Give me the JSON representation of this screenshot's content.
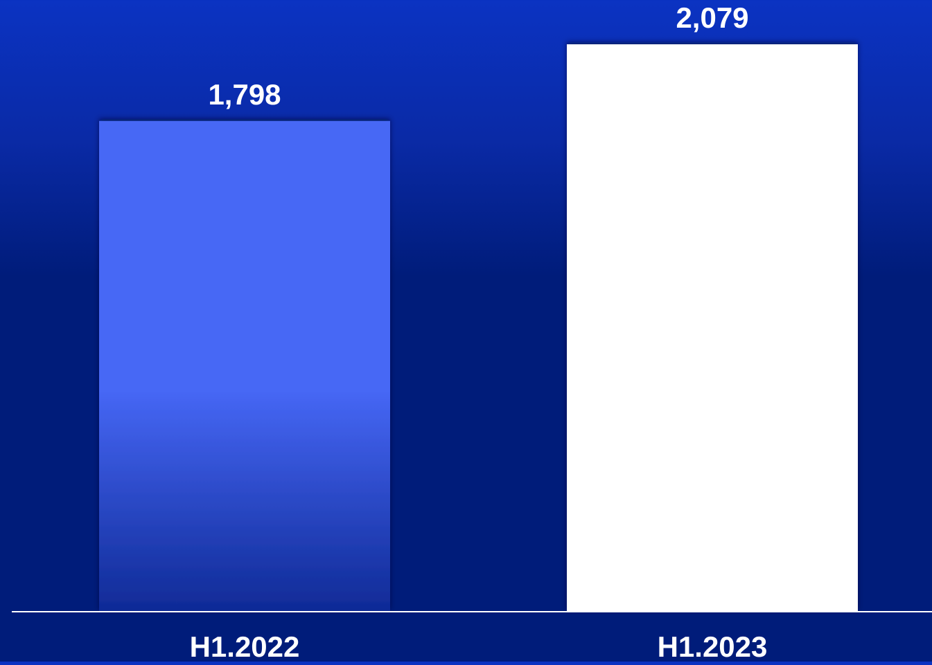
{
  "chart_data": {
    "type": "bar",
    "categories": [
      "H1.2022",
      "H1.2023"
    ],
    "values": [
      1798,
      2079
    ],
    "value_labels": [
      "1,798",
      "2,079"
    ],
    "bar_colors": [
      "#4667f5",
      "#ffffff"
    ],
    "background_color": "#001c7a",
    "text_color": "#ffffff",
    "grid": false,
    "legend": "none"
  }
}
